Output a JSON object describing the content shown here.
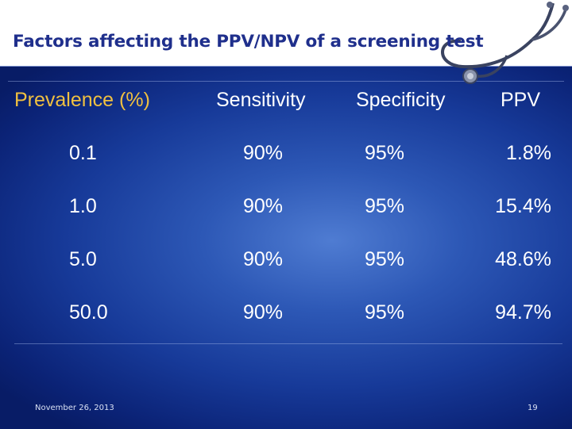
{
  "slide": {
    "title": "Factors affecting the PPV/NPV of a screening test",
    "footer_date": "November 26, 2013",
    "page_number": "19"
  },
  "table": {
    "headers": [
      "Prevalence (%)",
      "Sensitivity",
      "Specificity",
      "PPV"
    ],
    "rows": [
      [
        "0.1",
        "90%",
        "95%",
        "1.8%"
      ],
      [
        "1.0",
        "90%",
        "95%",
        "15.4%"
      ],
      [
        "5.0",
        "90%",
        "95%",
        "48.6%"
      ],
      [
        "50.0",
        "90%",
        "95%",
        "94.7%"
      ]
    ]
  },
  "colors": {
    "title": "#1f2f8c",
    "header_highlight": "#f0c040",
    "panel_dark": "#0b2377",
    "panel_light": "#4f7cd2"
  },
  "icons": [
    "stethoscope-icon"
  ]
}
